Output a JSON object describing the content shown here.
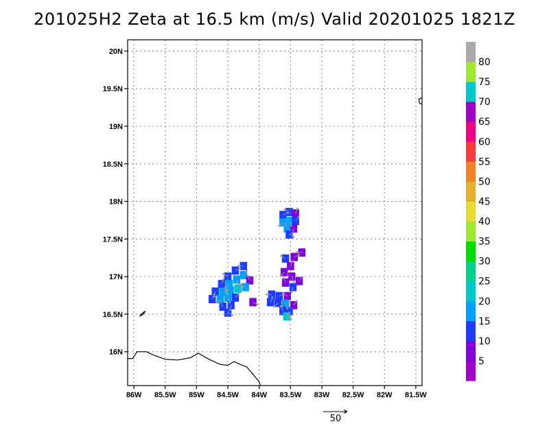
{
  "chart_data": {
    "type": "heatmap",
    "title": "201025H2  Zeta at 16.5 km (m/s) Valid 20201025  1821Z",
    "xlim": [
      -86.1,
      -81.4
    ],
    "ylim": [
      15.55,
      20.15
    ],
    "x_ticks": [
      {
        "value": -86.0,
        "label": "86W"
      },
      {
        "value": -85.5,
        "label": "85.5W"
      },
      {
        "value": -85.0,
        "label": "85W"
      },
      {
        "value": -84.5,
        "label": "84.5W"
      },
      {
        "value": -84.0,
        "label": "84W"
      },
      {
        "value": -83.5,
        "label": "83.5W"
      },
      {
        "value": -83.0,
        "label": "83W"
      },
      {
        "value": -82.5,
        "label": "82.5W"
      },
      {
        "value": -82.0,
        "label": "82W"
      },
      {
        "value": -81.5,
        "label": "81.5W"
      }
    ],
    "y_ticks": [
      {
        "value": 16.0,
        "label": "16N"
      },
      {
        "value": 16.5,
        "label": "16.5N"
      },
      {
        "value": 17.0,
        "label": "17N"
      },
      {
        "value": 17.5,
        "label": "17.5N"
      },
      {
        "value": 18.0,
        "label": "18N"
      },
      {
        "value": 18.5,
        "label": "18.5N"
      },
      {
        "value": 19.0,
        "label": "19N"
      },
      {
        "value": 19.5,
        "label": "19.5N"
      },
      {
        "value": 20.0,
        "label": "20N"
      }
    ],
    "grid": true,
    "colorbar": {
      "placement": "right",
      "bins": [
        {
          "lo": 0,
          "hi": 5,
          "color": "#a000c8"
        },
        {
          "lo": 5,
          "hi": 10,
          "color": "#8200dc"
        },
        {
          "lo": 10,
          "hi": 15,
          "color": "#1e3cff"
        },
        {
          "lo": 15,
          "hi": 20,
          "color": "#00a0ff"
        },
        {
          "lo": 20,
          "hi": 25,
          "color": "#00c8c8"
        },
        {
          "lo": 25,
          "hi": 30,
          "color": "#00d28c"
        },
        {
          "lo": 30,
          "hi": 35,
          "color": "#00dc00"
        },
        {
          "lo": 35,
          "hi": 40,
          "color": "#a0e632"
        },
        {
          "lo": 40,
          "hi": 45,
          "color": "#e6dc32"
        },
        {
          "lo": 45,
          "hi": 50,
          "color": "#e6af2d"
        },
        {
          "lo": 50,
          "hi": 55,
          "color": "#f08228"
        },
        {
          "lo": 55,
          "hi": 60,
          "color": "#fa3c3c"
        },
        {
          "lo": 60,
          "hi": 65,
          "color": "#f00082"
        },
        {
          "lo": 65,
          "hi": 70,
          "color": "#a000c8"
        },
        {
          "lo": 70,
          "hi": 75,
          "color": "#00c8c8"
        },
        {
          "lo": 75,
          "hi": 80,
          "color": "#a0e632"
        },
        {
          "lo": 80,
          "hi": 85,
          "color": "#aaaaaa"
        }
      ],
      "labels": [
        {
          "value": 5,
          "text": "5"
        },
        {
          "value": 10,
          "text": "10"
        },
        {
          "value": 15,
          "text": "15"
        },
        {
          "value": 20,
          "text": "20"
        },
        {
          "value": 25,
          "text": "25"
        },
        {
          "value": 30,
          "text": "30"
        },
        {
          "value": 35,
          "text": "35"
        },
        {
          "value": 40,
          "text": "40"
        },
        {
          "value": 45,
          "text": "45"
        },
        {
          "value": 50,
          "text": "50"
        },
        {
          "value": 55,
          "text": "55"
        },
        {
          "value": 60,
          "text": "60"
        },
        {
          "value": 65,
          "text": "65"
        },
        {
          "value": 70,
          "text": "70"
        },
        {
          "value": 75,
          "text": "75"
        },
        {
          "value": 80,
          "text": "80"
        }
      ]
    },
    "reference_vector": {
      "label": "50",
      "magnitude": 50,
      "direction": "east"
    },
    "coastline": [
      [
        [
          -86.1,
          15.91
        ],
        [
          -86.02,
          15.91
        ],
        [
          -85.95,
          16.0
        ],
        [
          -85.8,
          16.0
        ],
        [
          -85.7,
          15.96
        ],
        [
          -85.5,
          15.9
        ],
        [
          -85.3,
          15.89
        ],
        [
          -85.1,
          15.92
        ],
        [
          -84.97,
          15.98
        ],
        [
          -84.8,
          15.9
        ],
        [
          -84.62,
          15.83
        ],
        [
          -84.5,
          15.82
        ],
        [
          -84.4,
          15.87
        ],
        [
          -84.3,
          15.83
        ],
        [
          -84.2,
          15.8
        ],
        [
          -84.1,
          15.7
        ],
        [
          -84.0,
          15.6
        ],
        [
          -83.98,
          15.55
        ]
      ],
      [
        [
          -85.91,
          16.47
        ],
        [
          -85.85,
          16.5
        ],
        [
          -85.82,
          16.54
        ],
        [
          -85.9,
          16.49
        ]
      ],
      [
        [
          -81.4,
          19.38
        ],
        [
          -81.45,
          19.36
        ],
        [
          -81.44,
          19.31
        ],
        [
          -81.4,
          19.29
        ]
      ]
    ],
    "clusters": [
      {
        "name": "north",
        "cells": [
          [
            -83.62,
            17.82,
            12
          ],
          [
            -83.52,
            17.86,
            10
          ],
          [
            -83.42,
            17.84,
            8
          ],
          [
            -83.62,
            17.72,
            15
          ],
          [
            -83.52,
            17.74,
            18
          ],
          [
            -83.42,
            17.74,
            12
          ],
          [
            -83.55,
            17.64,
            15
          ],
          [
            -83.45,
            17.64,
            8
          ],
          [
            -83.52,
            17.56,
            10
          ]
        ]
      },
      {
        "name": "west",
        "cells": [
          [
            -84.25,
            17.14,
            12
          ],
          [
            -84.38,
            17.08,
            12
          ],
          [
            -84.5,
            17.0,
            10
          ],
          [
            -84.6,
            16.9,
            12
          ],
          [
            -84.48,
            16.9,
            15
          ],
          [
            -84.36,
            16.96,
            18
          ],
          [
            -84.25,
            17.02,
            15
          ],
          [
            -84.15,
            16.95,
            5
          ],
          [
            -84.7,
            16.8,
            12
          ],
          [
            -84.58,
            16.8,
            15
          ],
          [
            -84.46,
            16.82,
            18
          ],
          [
            -84.34,
            16.84,
            20
          ],
          [
            -84.22,
            16.86,
            15
          ],
          [
            -84.75,
            16.7,
            12
          ],
          [
            -84.62,
            16.7,
            15
          ],
          [
            -84.5,
            16.72,
            15
          ],
          [
            -84.38,
            16.72,
            12
          ],
          [
            -84.58,
            16.6,
            12
          ],
          [
            -84.45,
            16.62,
            10
          ],
          [
            -84.5,
            16.52,
            10
          ]
        ]
      },
      {
        "name": "south",
        "cells": [
          [
            -83.8,
            16.76,
            12
          ],
          [
            -83.68,
            16.74,
            10
          ],
          [
            -83.55,
            16.74,
            5
          ],
          [
            -83.82,
            16.66,
            10
          ],
          [
            -83.7,
            16.65,
            12
          ],
          [
            -83.58,
            16.64,
            15
          ],
          [
            -83.45,
            16.62,
            5
          ],
          [
            -83.62,
            16.54,
            12
          ],
          [
            -83.52,
            16.54,
            10
          ],
          [
            -83.56,
            16.47,
            20
          ]
        ]
      },
      {
        "name": "east",
        "cells": [
          [
            -83.32,
            17.32,
            5
          ],
          [
            -83.44,
            17.26,
            5
          ],
          [
            -83.58,
            17.24,
            10
          ],
          [
            -83.5,
            17.14,
            5
          ],
          [
            -83.6,
            17.06,
            5
          ],
          [
            -83.48,
            17.0,
            5
          ],
          [
            -83.36,
            16.94,
            5
          ],
          [
            -83.58,
            16.92,
            5
          ],
          [
            -83.46,
            16.86,
            10
          ]
        ]
      },
      {
        "name": "small-west",
        "cells": [
          [
            -84.1,
            16.66,
            5
          ]
        ]
      }
    ]
  }
}
